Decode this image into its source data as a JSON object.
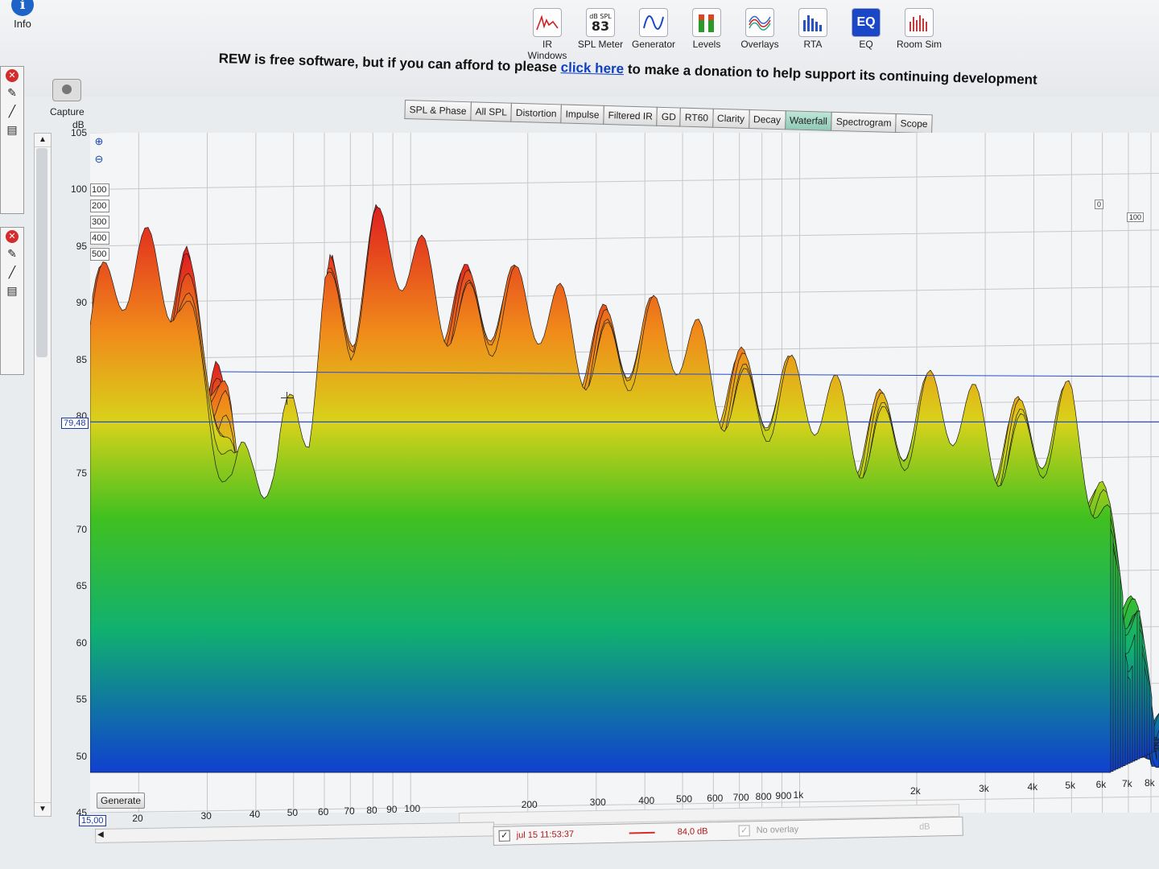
{
  "header": {
    "info_label": "Info",
    "tools": [
      {
        "label": "IR Windows",
        "icon": "ir-windows-icon"
      },
      {
        "label": "SPL Meter",
        "icon": "spl-meter-icon",
        "display_small": "dB SPL",
        "display_big": "83"
      },
      {
        "label": "Generator",
        "icon": "generator-icon"
      },
      {
        "label": "Levels",
        "icon": "levels-icon"
      },
      {
        "label": "Overlays",
        "icon": "overlays-icon"
      },
      {
        "label": "RTA",
        "icon": "rta-icon"
      },
      {
        "label": "EQ",
        "icon": "eq-icon",
        "display_big": "EQ"
      },
      {
        "label": "Room Sim",
        "icon": "room-sim-icon"
      }
    ]
  },
  "donation": {
    "before": "REW is free software, but if you can afford to please ",
    "link": "click here",
    "after": " to make a donation to help support its continuing development"
  },
  "capture_label": "Capture",
  "tabs": [
    "SPL & Phase",
    "All SPL",
    "Distortion",
    "Impulse",
    "Filtered IR",
    "GD",
    "RT60",
    "Clarity",
    "Decay",
    "Waterfall",
    "Spectrogram",
    "Scope"
  ],
  "active_tab": "Waterfall",
  "chart": {
    "y_unit": "dB",
    "y_ticks": [
      "105",
      "100",
      "95",
      "90",
      "85",
      "80",
      "75",
      "70",
      "65",
      "60",
      "55",
      "50",
      "45"
    ],
    "cursor_y": "79,48",
    "cursor_x": "15,00",
    "x_ticks": [
      "20",
      "30",
      "40",
      "50",
      "60",
      "70",
      "80",
      "90",
      "100",
      "200",
      "300",
      "400",
      "500",
      "600",
      "700",
      "800",
      "900",
      "1k",
      "2k",
      "3k",
      "4k",
      "5k",
      "6k",
      "7k",
      "8k"
    ],
    "time_ranges": [
      "100",
      "200",
      "300",
      "400",
      "500"
    ],
    "depth_labels": [
      "0",
      "100"
    ],
    "generate_label": "Generate"
  },
  "chart_data": {
    "type": "area",
    "title": "",
    "xlabel": "",
    "ylabel": "dB",
    "x_scale": "log",
    "xlim": [
      15,
      8000
    ],
    "ylim": [
      45,
      105
    ],
    "series": [
      {
        "x": [
          15,
          20,
          25,
          30,
          35,
          40,
          45,
          50,
          55,
          60,
          70,
          80,
          90,
          100,
          150,
          200,
          300,
          400,
          500,
          600,
          800,
          1000,
          2000,
          3000,
          5000,
          8000
        ],
        "values": [
          88,
          92,
          93,
          84,
          72,
          75,
          73,
          80,
          82,
          92,
          89,
          94,
          93,
          92,
          90,
          88,
          87,
          86,
          85,
          84,
          82,
          80,
          79,
          79,
          78,
          58
        ]
      }
    ],
    "grid": true
  },
  "status": {
    "measurement_name": "jul 15 11:53:37",
    "measurement_value": "84,0 dB",
    "no_overlay_label": "No overlay",
    "db_label": "dB"
  }
}
